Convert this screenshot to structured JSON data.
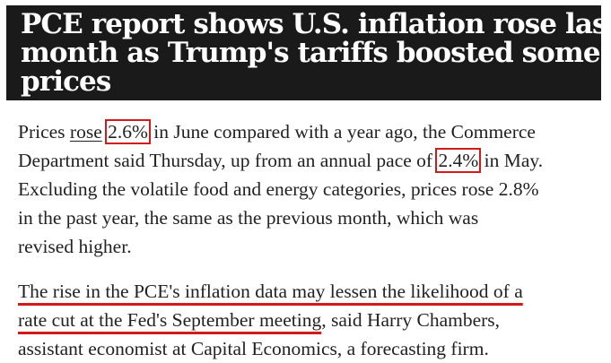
{
  "headline": {
    "lines": [
      "PCE report shows U.S. inflation rose last",
      "month as Trump's tariffs boosted some",
      "prices"
    ]
  },
  "paragraph1": {
    "l1_pre": "Prices ",
    "l1_link": "rose",
    "l1_space": " ",
    "l1_box": "2.6%",
    "l1_post": " in June compared with a year ago, the Commerce",
    "l2_pre": "Department said Thursday, up from an annual pace of ",
    "l2_box": "2.4%",
    "l2_post": " in May.",
    "l3": "Excluding the volatile food and energy categories, prices rose 2.8%",
    "l4": "in the past year, the same as the previous month, which was",
    "l5": "revised higher."
  },
  "paragraph2": {
    "l1_underlined": "The rise in the PCE's inflation data may lessen the likelihood of a",
    "l2_underlined": "rate cut at the Fed's September meeting",
    "l2_post": ", said Harry Chambers,",
    "l3": "assistant economist at Capital Economics, a forecasting firm."
  },
  "colors": {
    "headline_bg": "#1a1a1a",
    "headline_text": "#ffffff",
    "annotation_red": "#d11a1a",
    "body_text": "#222222"
  }
}
